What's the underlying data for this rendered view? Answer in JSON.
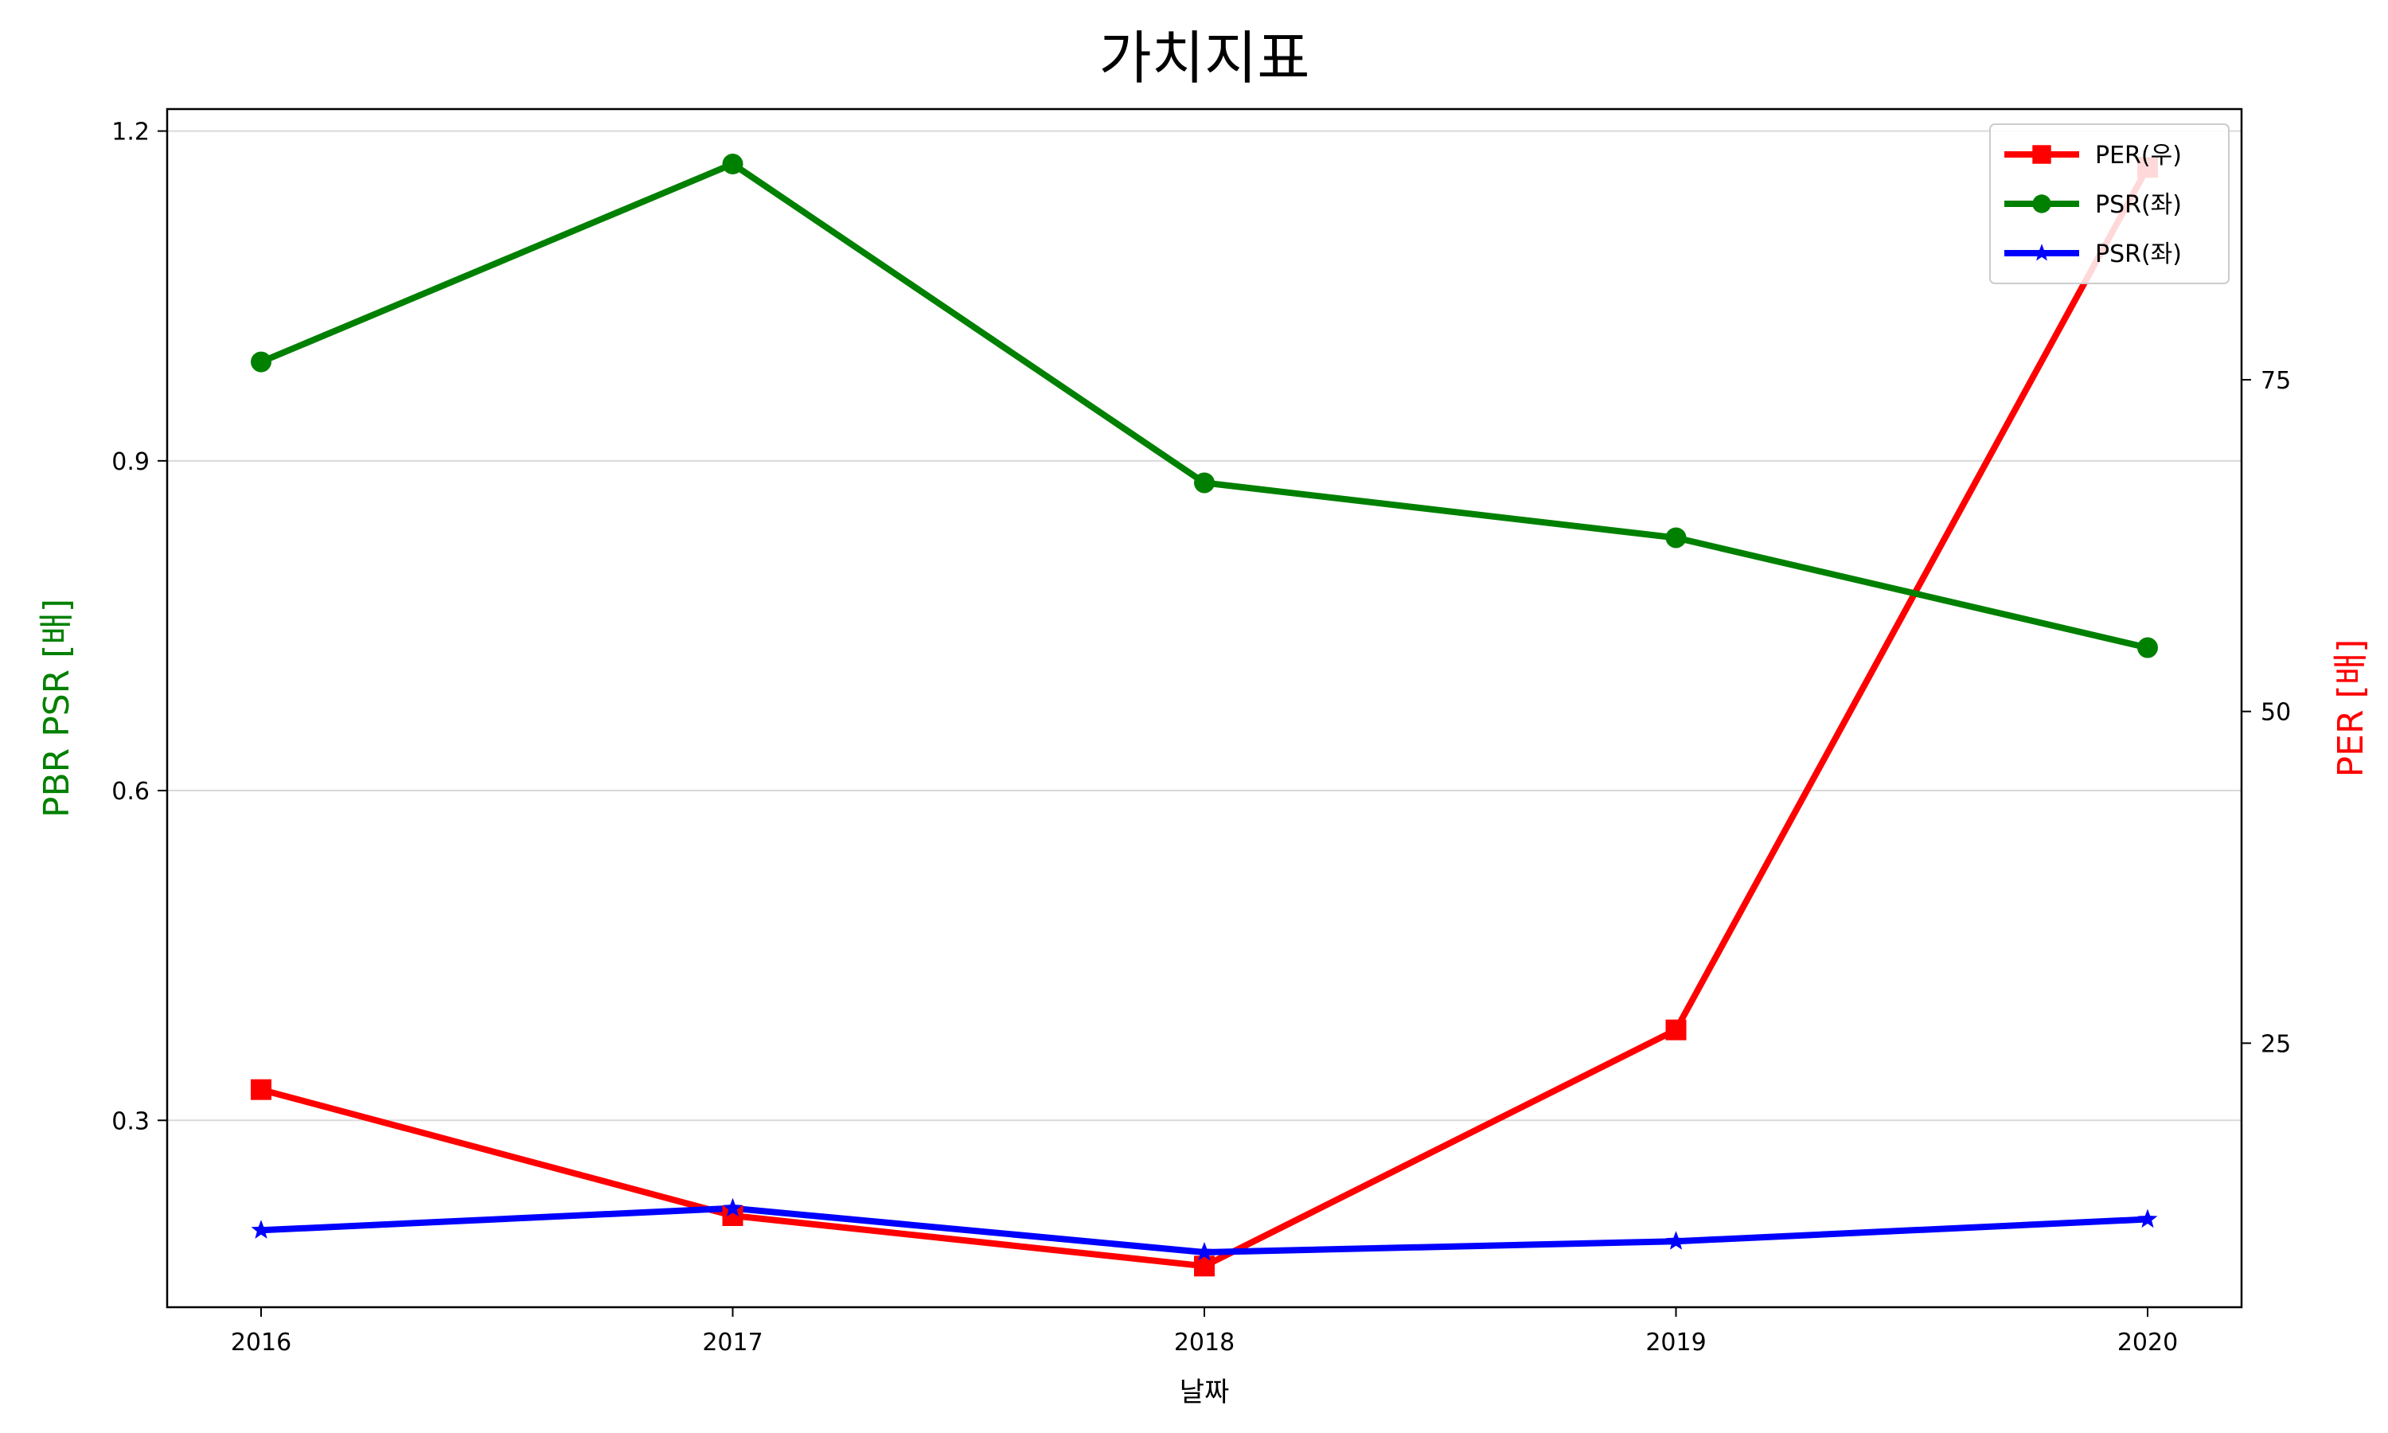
{
  "chart_data": {
    "type": "line",
    "title": "가치지표",
    "xlabel": "날짜",
    "ylabel_left": "PBR PSR [배]",
    "ylabel_right": "PER [배]",
    "x": [
      "2016",
      "2017",
      "2018",
      "2019",
      "2020"
    ],
    "ylim_left": [
      0.13,
      1.22
    ],
    "yticks_left": [
      "0.3",
      "0.6",
      "0.9",
      "1.2"
    ],
    "ylim_right": [
      5.1,
      95.4
    ],
    "yticks_right": [
      "25",
      "50",
      "75"
    ],
    "grid": "horizontal",
    "legend": "top-right",
    "series": [
      {
        "name": "PER(우)",
        "axis": "right",
        "marker": "square",
        "color": "#ff0000",
        "values": [
          21.5,
          12.0,
          8.2,
          26.0,
          91.0
        ]
      },
      {
        "name": "PSR(좌)",
        "axis": "left",
        "marker": "circle",
        "color": "#008000",
        "values": [
          0.99,
          1.17,
          0.88,
          0.83,
          0.73
        ]
      },
      {
        "name": "PSR(좌)",
        "axis": "left",
        "marker": "star",
        "color": "#0000ff",
        "values": [
          0.2,
          0.22,
          0.18,
          0.19,
          0.21
        ]
      }
    ],
    "colors": {
      "ylabel_left": "#008000",
      "ylabel_right": "#ff0000",
      "grid": "#d9d9d9"
    }
  }
}
